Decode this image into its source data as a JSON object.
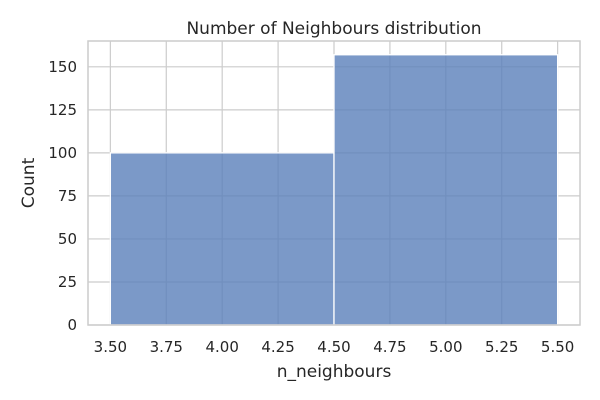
{
  "chart_data": {
    "type": "bar",
    "title": "Number of Neighbours distribution",
    "xlabel": "n_neighbours",
    "ylabel": "Count",
    "xlim": [
      3.4,
      5.6
    ],
    "ylim": [
      0,
      165
    ],
    "xticks": [
      "3.50",
      "3.75",
      "4.00",
      "4.25",
      "4.50",
      "4.75",
      "5.00",
      "5.25",
      "5.50"
    ],
    "yticks": [
      "0",
      "25",
      "50",
      "75",
      "100",
      "125",
      "150"
    ],
    "bins": [
      {
        "x0": 3.5,
        "x1": 4.5,
        "count": 100
      },
      {
        "x0": 4.5,
        "x1": 5.5,
        "count": 157
      }
    ],
    "grid": true,
    "colors": {
      "bar_fill": "#5a7fba",
      "bar_stroke": "#ffffff",
      "grid": "#cccccc",
      "axes_edge": "#cccccc",
      "text": "#262626",
      "background": "#ffffff"
    }
  }
}
